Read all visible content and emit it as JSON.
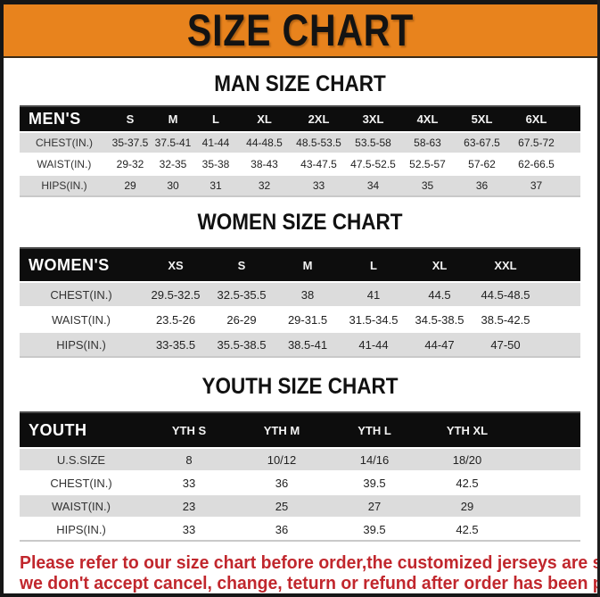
{
  "title": "SIZE CHART",
  "colors": {
    "banner_orange": "#E8831D",
    "table_header_black": "#0D0D0D",
    "row_stripe_gray": "#DCDCDC",
    "note_red": "#C1272D"
  },
  "sections": [
    {
      "heading": "MAN SIZE CHART",
      "table": {
        "label": "MEN'S",
        "columns": [
          "S",
          "M",
          "L",
          "XL",
          "2XL",
          "3XL",
          "4XL",
          "5XL",
          "6XL"
        ],
        "rows": [
          {
            "label": "CHEST(IN.)",
            "values": [
              "35-37.5",
              "37.5-41",
              "41-44",
              "44-48.5",
              "48.5-53.5",
              "53.5-58",
              "58-63",
              "63-67.5",
              "67.5-72"
            ]
          },
          {
            "label": "WAIST(IN.)",
            "values": [
              "29-32",
              "32-35",
              "35-38",
              "38-43",
              "43-47.5",
              "47.5-52.5",
              "52.5-57",
              "57-62",
              "62-66.5"
            ]
          },
          {
            "label": "HIPS(IN.)",
            "values": [
              "29",
              "30",
              "31",
              "32",
              "33",
              "34",
              "35",
              "36",
              "37"
            ]
          }
        ]
      }
    },
    {
      "heading": "WOMEN SIZE CHART",
      "table": {
        "label": "WOMEN'S",
        "columns": [
          "XS",
          "S",
          "M",
          "L",
          "XL",
          "XXL"
        ],
        "rows": [
          {
            "label": "CHEST(IN.)",
            "values": [
              "29.5-32.5",
              "32.5-35.5",
              "38",
              "41",
              "44.5",
              "44.5-48.5"
            ]
          },
          {
            "label": "WAIST(IN.)",
            "values": [
              "23.5-26",
              "26-29",
              "29-31.5",
              "31.5-34.5",
              "34.5-38.5",
              "38.5-42.5"
            ]
          },
          {
            "label": "HIPS(IN.)",
            "values": [
              "33-35.5",
              "35.5-38.5",
              "38.5-41",
              "41-44",
              "44-47",
              "47-50"
            ]
          }
        ]
      }
    },
    {
      "heading": "YOUTH SIZE CHART",
      "table": {
        "label": "YOUTH",
        "columns": [
          "YTH S",
          "YTH M",
          "YTH L",
          "YTH XL"
        ],
        "rows": [
          {
            "label": "U.S.SIZE",
            "values": [
              "8",
              "10/12",
              "14/16",
              "18/20"
            ]
          },
          {
            "label": "CHEST(IN.)",
            "values": [
              "33",
              "36",
              "39.5",
              "42.5"
            ]
          },
          {
            "label": "WAIST(IN.)",
            "values": [
              "23",
              "25",
              "27",
              "29"
            ]
          },
          {
            "label": "HIPS(IN.)",
            "values": [
              "33",
              "36",
              "39.5",
              "42.5"
            ]
          }
        ]
      }
    }
  ],
  "footer": {
    "line1": "Please refer to our size chart before order,the customized jerseys are special products,",
    "line2": "we don't accept cancel, change, teturn or refund after order has been placed!"
  }
}
